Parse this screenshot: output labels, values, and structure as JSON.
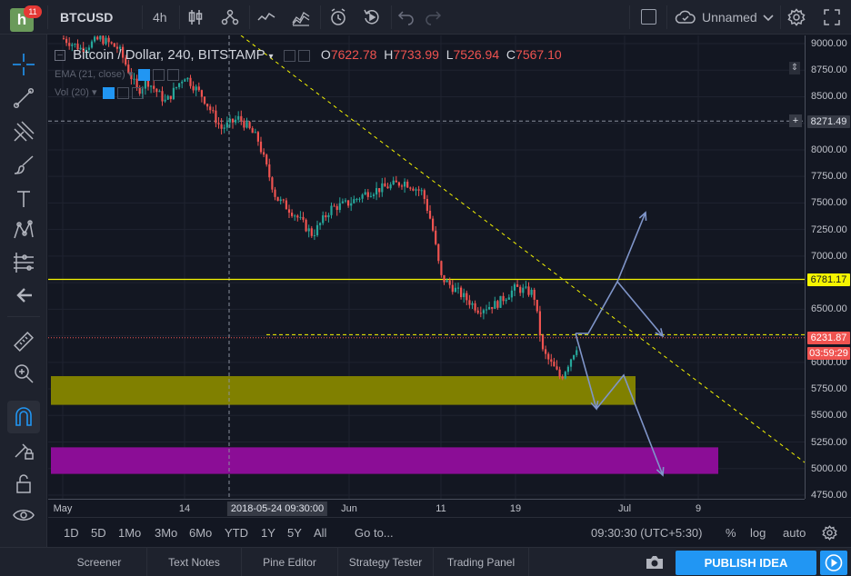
{
  "topbar": {
    "logo_letter": "h",
    "notifications": "11",
    "symbol": "BTCUSD",
    "interval": "4h",
    "layout_name": "Unnamed",
    "icons": [
      "candles-icon",
      "compare-icon",
      "indicators-icon",
      "templates-icon",
      "alert-icon",
      "replay-icon",
      "undo-icon",
      "redo-icon",
      "layout-icon",
      "cloud-icon",
      "settings-icon",
      "fullscreen-icon"
    ]
  },
  "lefttoolbar": {
    "icons": [
      "crosshair-icon",
      "trend-line-icon",
      "pitchfork-icon",
      "brush-icon",
      "text-icon",
      "pattern-icon",
      "prediction-icon",
      "back-arrow-icon",
      "ruler-icon",
      "zoom-in-icon",
      "magnet-icon",
      "edit-lock-icon",
      "lock-icon",
      "eye-icon",
      "collapse-icon"
    ]
  },
  "legend": {
    "title": "Bitcoin / Dollar, 240, BITSTAMP",
    "o_label": "O",
    "o_value": "7622.78",
    "h_label": "H",
    "h_value": "7733.99",
    "l_label": "L",
    "l_value": "7526.94",
    "c_label": "C",
    "c_value": "7567.10",
    "ema": "EMA (21, close)",
    "vol": "Vol (20)"
  },
  "price_scale": {
    "ticks": [
      "9000.00",
      "8750.00",
      "8500.00",
      "8250.00",
      "8000.00",
      "7750.00",
      "7500.00",
      "7250.00",
      "7000.00",
      "6750.00",
      "6500.00",
      "6250.00",
      "6000.00",
      "5750.00",
      "5500.00",
      "5250.00",
      "5000.00",
      "4750.00"
    ],
    "crosshair_price": "8271.49",
    "resistance_label": "6781.17",
    "last_price": "6231.87",
    "countdown": "03:59:29"
  },
  "time_axis": {
    "ticks": [
      "May",
      "14",
      "Jun",
      "11",
      "19",
      "Jul",
      "9"
    ],
    "crosshair_time": "2018-05-24 09:30:00"
  },
  "rangebar": {
    "ranges": [
      "1D",
      "5D",
      "1Mo",
      "3Mo",
      "6Mo",
      "YTD",
      "1Y",
      "5Y",
      "All"
    ],
    "goto": "Go to...",
    "clock": "09:30:30 (UTC+5:30)",
    "percent": "%",
    "log": "log",
    "auto": "auto"
  },
  "panels": {
    "tabs": [
      "Screener",
      "Text Notes",
      "Pine Editor",
      "Strategy Tester",
      "Trading Panel"
    ],
    "publish": "PUBLISH IDEA"
  },
  "colors": {
    "up": "#26a69a",
    "down": "#ef5350",
    "yellow_zone": "#808000",
    "purple_zone": "#8b0d96",
    "resistance": "#f5f500",
    "arrow": "#7f95c9",
    "accent": "#2196f3"
  },
  "chart_data": {
    "type": "candlestick",
    "symbol": "Bitcoin / Dollar",
    "exchange": "BITSTAMP",
    "interval": "240",
    "y_range": [
      4700,
      9050
    ],
    "x_range": [
      "2018-05-01",
      "2018-07-13"
    ],
    "x_ticks": [
      "May",
      "14",
      "Jun",
      "11",
      "19",
      "Jul",
      "9"
    ],
    "price_path": [
      [
        "2018-05-01",
        9050
      ],
      [
        "2018-05-03",
        8950
      ],
      [
        "2018-05-05",
        9050
      ],
      [
        "2018-05-07",
        8950
      ],
      [
        "2018-05-09",
        8550
      ],
      [
        "2018-05-10",
        8650
      ],
      [
        "2018-05-12",
        8450
      ],
      [
        "2018-05-14",
        8700
      ],
      [
        "2018-05-16",
        8500
      ],
      [
        "2018-05-18",
        8200
      ],
      [
        "2018-05-20",
        8300
      ],
      [
        "2018-05-22",
        8100
      ],
      [
        "2018-05-24",
        7550
      ],
      [
        "2018-05-26",
        7400
      ],
      [
        "2018-05-28",
        7200
      ],
      [
        "2018-05-30",
        7450
      ],
      [
        "2018-06-01",
        7500
      ],
      [
        "2018-06-03",
        7600
      ],
      [
        "2018-06-05",
        7650
      ],
      [
        "2018-06-07",
        7700
      ],
      [
        "2018-06-09",
        7600
      ],
      [
        "2018-06-10",
        7300
      ],
      [
        "2018-06-11",
        6800
      ],
      [
        "2018-06-13",
        6650
      ],
      [
        "2018-06-15",
        6500
      ],
      [
        "2018-06-17",
        6550
      ],
      [
        "2018-06-19",
        6700
      ],
      [
        "2018-06-21",
        6650
      ],
      [
        "2018-06-22",
        6100
      ],
      [
        "2018-06-24",
        5850
      ],
      [
        "2018-06-26",
        6200
      ]
    ],
    "resistance": 6781.17,
    "last_price": 6231.87,
    "zones": [
      {
        "from": 5600,
        "to": 5870,
        "color": "yellow"
      },
      {
        "from": 4950,
        "to": 5200,
        "color": "purple"
      }
    ]
  }
}
